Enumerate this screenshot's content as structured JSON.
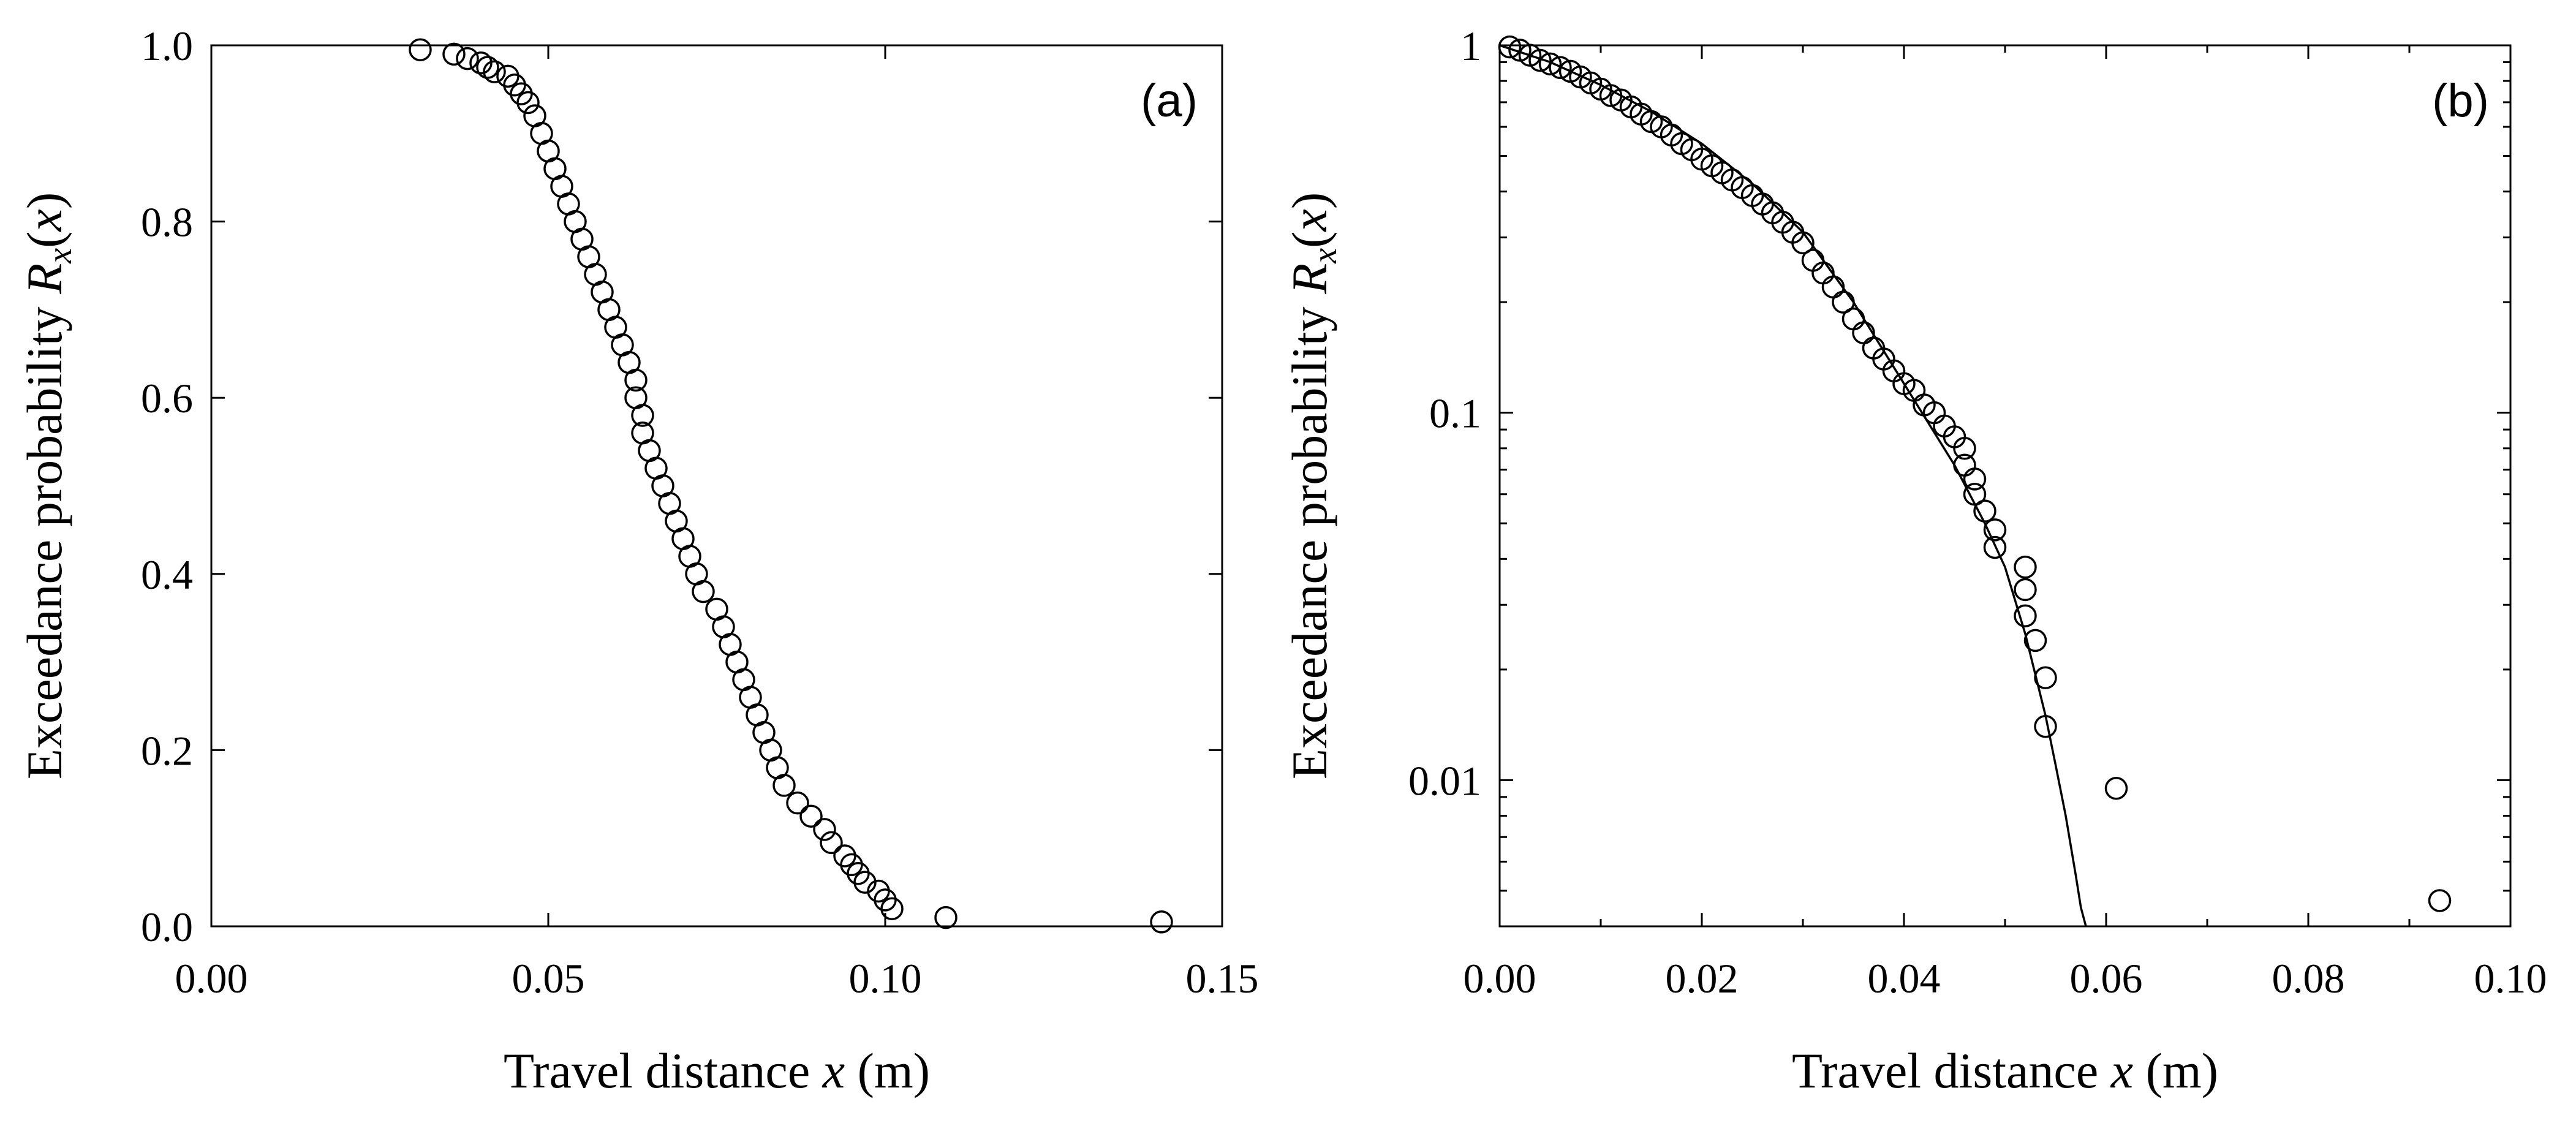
{
  "chart_data": [
    {
      "type": "scatter",
      "panel_label": "(a)",
      "xlabel": {
        "text": "Travel distance",
        "var": "x",
        "unit": "(m)"
      },
      "ylabel": {
        "text": "Exceedance probability",
        "var": "R",
        "sub": "x",
        "arg": "(x)"
      },
      "xlim": [
        0,
        0.15
      ],
      "ylim": [
        0,
        1
      ],
      "xticks": [
        0,
        0.05,
        0.1,
        0.15
      ],
      "xtick_labels": [
        "0.00",
        "0.05",
        "0.10",
        "0.15"
      ],
      "yticks": [
        0,
        0.2,
        0.4,
        0.6,
        0.8,
        1.0
      ],
      "ytick_labels": [
        "0.0",
        "0.2",
        "0.4",
        "0.6",
        "0.8",
        "1.0"
      ],
      "grid": false,
      "series": [
        {
          "marker": "open-circle",
          "points": [
            [
              0.031,
              0.995
            ],
            [
              0.036,
              0.99
            ],
            [
              0.038,
              0.985
            ],
            [
              0.04,
              0.98
            ],
            [
              0.041,
              0.975
            ],
            [
              0.042,
              0.97
            ],
            [
              0.044,
              0.965
            ],
            [
              0.045,
              0.955
            ],
            [
              0.046,
              0.945
            ],
            [
              0.047,
              0.935
            ],
            [
              0.048,
              0.92
            ],
            [
              0.049,
              0.9
            ],
            [
              0.05,
              0.88
            ],
            [
              0.051,
              0.86
            ],
            [
              0.052,
              0.84
            ],
            [
              0.053,
              0.82
            ],
            [
              0.054,
              0.8
            ],
            [
              0.055,
              0.78
            ],
            [
              0.056,
              0.76
            ],
            [
              0.057,
              0.74
            ],
            [
              0.058,
              0.72
            ],
            [
              0.059,
              0.7
            ],
            [
              0.06,
              0.68
            ],
            [
              0.061,
              0.66
            ],
            [
              0.062,
              0.64
            ],
            [
              0.063,
              0.62
            ],
            [
              0.063,
              0.6
            ],
            [
              0.064,
              0.58
            ],
            [
              0.064,
              0.56
            ],
            [
              0.065,
              0.54
            ],
            [
              0.066,
              0.52
            ],
            [
              0.067,
              0.5
            ],
            [
              0.068,
              0.48
            ],
            [
              0.069,
              0.46
            ],
            [
              0.07,
              0.44
            ],
            [
              0.071,
              0.42
            ],
            [
              0.072,
              0.4
            ],
            [
              0.073,
              0.38
            ],
            [
              0.075,
              0.36
            ],
            [
              0.076,
              0.34
            ],
            [
              0.077,
              0.32
            ],
            [
              0.078,
              0.3
            ],
            [
              0.079,
              0.28
            ],
            [
              0.08,
              0.26
            ],
            [
              0.081,
              0.24
            ],
            [
              0.082,
              0.22
            ],
            [
              0.083,
              0.2
            ],
            [
              0.084,
              0.18
            ],
            [
              0.085,
              0.16
            ],
            [
              0.087,
              0.14
            ],
            [
              0.089,
              0.125
            ],
            [
              0.091,
              0.11
            ],
            [
              0.092,
              0.095
            ],
            [
              0.094,
              0.08
            ],
            [
              0.095,
              0.07
            ],
            [
              0.096,
              0.06
            ],
            [
              0.097,
              0.05
            ],
            [
              0.099,
              0.04
            ],
            [
              0.1,
              0.03
            ],
            [
              0.101,
              0.02
            ],
            [
              0.109,
              0.01
            ],
            [
              0.141,
              0.005
            ]
          ]
        }
      ]
    },
    {
      "type": "scatter",
      "panel_label": "(b)",
      "xlabel": {
        "text": "Travel distance",
        "var": "x",
        "unit": "(m)"
      },
      "ylabel": {
        "text": "Exceedance probability",
        "var": "R",
        "sub": "x",
        "arg": "(x)"
      },
      "xlim": [
        0,
        0.1
      ],
      "ylim": [
        0.004,
        1
      ],
      "yscale": "log",
      "xticks": [
        0,
        0.02,
        0.04,
        0.06,
        0.08,
        0.1
      ],
      "xtick_labels": [
        "0.00",
        "0.02",
        "0.04",
        "0.06",
        "0.08",
        "0.10"
      ],
      "yticks": [
        0.01,
        0.1,
        1
      ],
      "ytick_labels": [
        "0.01",
        "0.1",
        "1"
      ],
      "grid": false,
      "series": [
        {
          "marker": "open-circle",
          "points": [
            [
              0.001,
              0.99
            ],
            [
              0.002,
              0.97
            ],
            [
              0.003,
              0.94
            ],
            [
              0.004,
              0.91
            ],
            [
              0.005,
              0.89
            ],
            [
              0.006,
              0.87
            ],
            [
              0.007,
              0.85
            ],
            [
              0.008,
              0.82
            ],
            [
              0.009,
              0.79
            ],
            [
              0.01,
              0.76
            ],
            [
              0.011,
              0.73
            ],
            [
              0.012,
              0.71
            ],
            [
              0.013,
              0.68
            ],
            [
              0.014,
              0.65
            ],
            [
              0.015,
              0.62
            ],
            [
              0.016,
              0.6
            ],
            [
              0.017,
              0.57
            ],
            [
              0.018,
              0.54
            ],
            [
              0.019,
              0.52
            ],
            [
              0.02,
              0.49
            ],
            [
              0.021,
              0.47
            ],
            [
              0.022,
              0.45
            ],
            [
              0.023,
              0.43
            ],
            [
              0.024,
              0.41
            ],
            [
              0.025,
              0.39
            ],
            [
              0.026,
              0.37
            ],
            [
              0.027,
              0.35
            ],
            [
              0.028,
              0.33
            ],
            [
              0.029,
              0.31
            ],
            [
              0.03,
              0.29
            ],
            [
              0.031,
              0.26
            ],
            [
              0.032,
              0.24
            ],
            [
              0.033,
              0.22
            ],
            [
              0.034,
              0.2
            ],
            [
              0.035,
              0.18
            ],
            [
              0.036,
              0.165
            ],
            [
              0.037,
              0.15
            ],
            [
              0.038,
              0.14
            ],
            [
              0.039,
              0.13
            ],
            [
              0.04,
              0.12
            ],
            [
              0.041,
              0.115
            ],
            [
              0.042,
              0.105
            ],
            [
              0.043,
              0.1
            ],
            [
              0.044,
              0.092
            ],
            [
              0.045,
              0.086
            ],
            [
              0.046,
              0.08
            ],
            [
              0.046,
              0.072
            ],
            [
              0.047,
              0.066
            ],
            [
              0.047,
              0.06
            ],
            [
              0.048,
              0.054
            ],
            [
              0.049,
              0.048
            ],
            [
              0.049,
              0.043
            ],
            [
              0.052,
              0.038
            ],
            [
              0.052,
              0.033
            ],
            [
              0.052,
              0.028
            ],
            [
              0.053,
              0.024
            ],
            [
              0.054,
              0.019
            ],
            [
              0.054,
              0.014
            ],
            [
              0.061,
              0.0095
            ],
            [
              0.093,
              0.0047
            ]
          ]
        },
        {
          "type": "line",
          "points": [
            [
              0.0,
              1.0
            ],
            [
              0.005,
              0.9
            ],
            [
              0.01,
              0.78
            ],
            [
              0.015,
              0.66
            ],
            [
              0.02,
              0.54
            ],
            [
              0.025,
              0.42
            ],
            [
              0.03,
              0.31
            ],
            [
              0.035,
              0.2
            ],
            [
              0.04,
              0.12
            ],
            [
              0.045,
              0.072
            ],
            [
              0.048,
              0.05
            ],
            [
              0.05,
              0.038
            ],
            [
              0.052,
              0.025
            ],
            [
              0.054,
              0.015
            ],
            [
              0.055,
              0.011
            ],
            [
              0.056,
              0.008
            ],
            [
              0.057,
              0.0055
            ],
            [
              0.0575,
              0.0045
            ],
            [
              0.058,
              0.004
            ]
          ]
        }
      ]
    }
  ]
}
